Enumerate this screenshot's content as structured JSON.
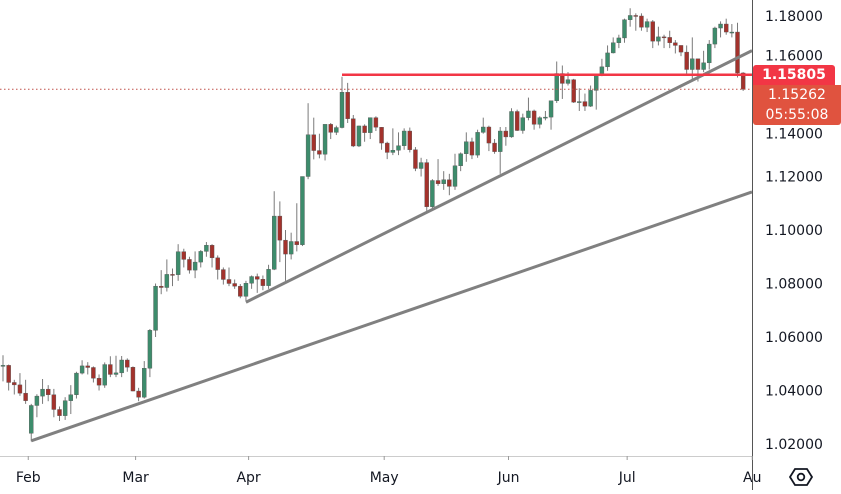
{
  "chart_data": {
    "type": "candlestick",
    "ylim": [
      1.015,
      1.1865
    ],
    "y_ticks": [
      "1.18000",
      "1.16000",
      "1.14000",
      "1.12000",
      "1.10000",
      "1.08000",
      "1.06000",
      "1.04000",
      "1.02000"
    ],
    "y_tick_values": [
      1.18,
      1.16,
      1.14,
      1.12,
      1.1,
      1.08,
      1.06,
      1.04,
      1.02
    ],
    "x_labels": [
      {
        "label": "Feb",
        "date": "2025-02-03"
      },
      {
        "label": "Mar",
        "date": "2025-02-28"
      },
      {
        "label": "Apr",
        "date": "2025-03-28"
      },
      {
        "label": "May",
        "date": "2025-05-01"
      },
      {
        "label": "Jun",
        "date": "2025-06-02"
      },
      {
        "label": "Jul",
        "date": "2025-07-01"
      },
      {
        "label": "Au",
        "date": "2025-08-01"
      }
    ],
    "colors": {
      "up": "#3d8c6c",
      "down": "#a3322c",
      "trendline": "#808080",
      "level": "#f23645",
      "last_price_tag": "#e0533f",
      "last_price_line": "#c0504a"
    },
    "grid": false,
    "candles": [
      [
        "2025-01-27",
        1.0493,
        1.0532,
        1.0434,
        1.0494
      ],
      [
        "2025-01-28",
        1.0494,
        1.0497,
        1.04,
        1.043
      ],
      [
        "2025-01-29",
        1.043,
        1.044,
        1.0385,
        1.0421
      ],
      [
        "2025-01-30",
        1.0421,
        1.0465,
        1.038,
        1.039
      ],
      [
        "2025-01-31",
        1.039,
        1.044,
        1.035,
        1.0362
      ],
      [
        "2025-02-03",
        1.024,
        1.035,
        1.021,
        1.0344
      ],
      [
        "2025-02-04",
        1.0344,
        1.0386,
        1.03,
        1.0379
      ],
      [
        "2025-02-05",
        1.0379,
        1.0443,
        1.035,
        1.0405
      ],
      [
        "2025-02-06",
        1.0405,
        1.042,
        1.036,
        1.0384
      ],
      [
        "2025-02-07",
        1.0384,
        1.0406,
        1.03,
        1.0329
      ],
      [
        "2025-02-10",
        1.0329,
        1.034,
        1.0286,
        1.0306
      ],
      [
        "2025-02-11",
        1.0306,
        1.0375,
        1.029,
        1.0362
      ],
      [
        "2025-02-12",
        1.0362,
        1.042,
        1.0312,
        1.0384
      ],
      [
        "2025-02-13",
        1.0384,
        1.047,
        1.037,
        1.0465
      ],
      [
        "2025-02-14",
        1.0465,
        1.0513,
        1.046,
        1.0492
      ],
      [
        "2025-02-17",
        1.0492,
        1.0506,
        1.046,
        1.0486
      ],
      [
        "2025-02-18",
        1.0486,
        1.049,
        1.043,
        1.0446
      ],
      [
        "2025-02-19",
        1.0446,
        1.046,
        1.04,
        1.042
      ],
      [
        "2025-02-20",
        1.042,
        1.0505,
        1.041,
        1.0497
      ],
      [
        "2025-02-21",
        1.0497,
        1.0528,
        1.045,
        1.046
      ],
      [
        "2025-02-24",
        1.046,
        1.053,
        1.045,
        1.0466
      ],
      [
        "2025-02-25",
        1.0466,
        1.0529,
        1.045,
        1.0514
      ],
      [
        "2025-02-26",
        1.0514,
        1.052,
        1.047,
        1.0487
      ],
      [
        "2025-02-27",
        1.0487,
        1.049,
        1.0397,
        1.0398
      ],
      [
        "2025-02-28",
        1.0398,
        1.041,
        1.036,
        1.0375
      ],
      [
        "2025-03-03",
        1.0375,
        1.051,
        1.037,
        1.0483
      ],
      [
        "2025-03-04",
        1.0483,
        1.063,
        1.045,
        1.0625
      ],
      [
        "2025-03-05",
        1.0625,
        1.08,
        1.06,
        1.079
      ],
      [
        "2025-03-06",
        1.079,
        1.085,
        1.076,
        1.0785
      ],
      [
        "2025-03-07",
        1.0785,
        1.089,
        1.077,
        1.0834
      ],
      [
        "2025-03-10",
        1.0834,
        1.0856,
        1.079,
        1.0833
      ],
      [
        "2025-03-11",
        1.0833,
        1.0947,
        1.081,
        1.0919
      ],
      [
        "2025-03-12",
        1.0919,
        1.093,
        1.086,
        1.089
      ],
      [
        "2025-03-13",
        1.089,
        1.09,
        1.0837,
        1.085
      ],
      [
        "2025-03-14",
        1.085,
        1.092,
        1.082,
        1.088
      ],
      [
        "2025-03-17",
        1.088,
        1.0925,
        1.086,
        1.092
      ],
      [
        "2025-03-18",
        1.092,
        1.0955,
        1.09,
        1.0943
      ],
      [
        "2025-03-19",
        1.0943,
        1.0947,
        1.086,
        1.0896
      ],
      [
        "2025-03-20",
        1.0896,
        1.0905,
        1.0815,
        1.0852
      ],
      [
        "2025-03-21",
        1.0852,
        1.086,
        1.0796,
        1.0815
      ],
      [
        "2025-03-24",
        1.0815,
        1.086,
        1.079,
        1.08
      ],
      [
        "2025-03-25",
        1.08,
        1.0815,
        1.078,
        1.079
      ],
      [
        "2025-03-26",
        1.079,
        1.0798,
        1.0745,
        1.0752
      ],
      [
        "2025-03-27",
        1.0752,
        1.081,
        1.0733,
        1.0801
      ],
      [
        "2025-03-28",
        1.0801,
        1.083,
        1.078,
        1.0826
      ],
      [
        "2025-03-31",
        1.0826,
        1.0837,
        1.0765,
        1.0816
      ],
      [
        "2025-04-01",
        1.0816,
        1.083,
        1.0775,
        1.0792
      ],
      [
        "2025-04-02",
        1.0792,
        1.087,
        1.078,
        1.0853
      ],
      [
        "2025-04-03",
        1.0853,
        1.1145,
        1.085,
        1.1052
      ],
      [
        "2025-04-04",
        1.1052,
        1.1107,
        1.088,
        1.0962
      ],
      [
        "2025-04-07",
        1.0962,
        1.1,
        1.081,
        1.091
      ],
      [
        "2025-04-08",
        1.091,
        1.099,
        1.089,
        1.0957
      ],
      [
        "2025-04-09",
        1.0957,
        1.11,
        1.092,
        1.0945
      ],
      [
        "2025-04-10",
        1.0945,
        1.12,
        1.094,
        1.12
      ],
      [
        "2025-04-11",
        1.12,
        1.1474,
        1.119,
        1.1356
      ],
      [
        "2025-04-14",
        1.1356,
        1.142,
        1.1264,
        1.1297
      ],
      [
        "2025-04-15",
        1.1297,
        1.136,
        1.1268,
        1.1283
      ],
      [
        "2025-04-16",
        1.1283,
        1.139,
        1.126,
        1.1395
      ],
      [
        "2025-04-17",
        1.1395,
        1.14,
        1.134,
        1.1365
      ],
      [
        "2025-04-18",
        1.1365,
        1.139,
        1.1355,
        1.1383
      ],
      [
        "2025-04-21",
        1.1383,
        1.1573,
        1.138,
        1.1515
      ],
      [
        "2025-04-22",
        1.1515,
        1.155,
        1.14,
        1.1416
      ],
      [
        "2025-04-23",
        1.1416,
        1.143,
        1.131,
        1.1314
      ],
      [
        "2025-04-24",
        1.1314,
        1.139,
        1.131,
        1.1389
      ],
      [
        "2025-04-25",
        1.1389,
        1.1395,
        1.133,
        1.1364
      ],
      [
        "2025-04-28",
        1.1364,
        1.142,
        1.134,
        1.142
      ],
      [
        "2025-04-29",
        1.142,
        1.1425,
        1.137,
        1.1384
      ],
      [
        "2025-04-30",
        1.1384,
        1.1385,
        1.13,
        1.1325
      ],
      [
        "2025-05-01",
        1.1325,
        1.133,
        1.1265,
        1.129
      ],
      [
        "2025-05-02",
        1.129,
        1.138,
        1.128,
        1.1298
      ],
      [
        "2025-05-05",
        1.1298,
        1.1365,
        1.128,
        1.1315
      ],
      [
        "2025-05-06",
        1.1315,
        1.138,
        1.13,
        1.137
      ],
      [
        "2025-05-07",
        1.137,
        1.1383,
        1.129,
        1.13
      ],
      [
        "2025-05-08",
        1.13,
        1.131,
        1.122,
        1.123
      ],
      [
        "2025-05-09",
        1.123,
        1.127,
        1.12,
        1.1252
      ],
      [
        "2025-05-12",
        1.1252,
        1.1265,
        1.1065,
        1.1087
      ],
      [
        "2025-05-13",
        1.1087,
        1.119,
        1.108,
        1.1185
      ],
      [
        "2025-05-14",
        1.1185,
        1.1265,
        1.1165,
        1.1173
      ],
      [
        "2025-05-15",
        1.1173,
        1.122,
        1.115,
        1.1188
      ],
      [
        "2025-05-16",
        1.1188,
        1.121,
        1.113,
        1.1163
      ],
      [
        "2025-05-19",
        1.1163,
        1.1285,
        1.115,
        1.124
      ],
      [
        "2025-05-20",
        1.124,
        1.129,
        1.122,
        1.1285
      ],
      [
        "2025-05-21",
        1.1285,
        1.1365,
        1.1255,
        1.133
      ],
      [
        "2025-05-22",
        1.133,
        1.1345,
        1.1265,
        1.128
      ],
      [
        "2025-05-23",
        1.128,
        1.1375,
        1.127,
        1.1365
      ],
      [
        "2025-05-26",
        1.1365,
        1.142,
        1.136,
        1.1385
      ],
      [
        "2025-05-27",
        1.1385,
        1.139,
        1.1295,
        1.1325
      ],
      [
        "2025-05-28",
        1.1325,
        1.134,
        1.1285,
        1.1293
      ],
      [
        "2025-05-29",
        1.1293,
        1.1385,
        1.121,
        1.137
      ],
      [
        "2025-05-30",
        1.137,
        1.1385,
        1.1315,
        1.1348
      ],
      [
        "2025-06-02",
        1.1348,
        1.1455,
        1.1345,
        1.1443
      ],
      [
        "2025-06-03",
        1.1443,
        1.145,
        1.137,
        1.1372
      ],
      [
        "2025-06-04",
        1.1372,
        1.1435,
        1.136,
        1.142
      ],
      [
        "2025-06-05",
        1.142,
        1.1495,
        1.141,
        1.1445
      ],
      [
        "2025-06-06",
        1.1445,
        1.145,
        1.1375,
        1.1395
      ],
      [
        "2025-06-09",
        1.1395,
        1.1425,
        1.138,
        1.142
      ],
      [
        "2025-06-10",
        1.142,
        1.1445,
        1.141,
        1.1422
      ],
      [
        "2025-06-11",
        1.1422,
        1.148,
        1.1375,
        1.1483
      ],
      [
        "2025-06-12",
        1.1483,
        1.163,
        1.1475,
        1.1585
      ],
      [
        "2025-06-13",
        1.1585,
        1.1615,
        1.149,
        1.1548
      ],
      [
        "2025-06-16",
        1.1548,
        1.159,
        1.154,
        1.1562
      ],
      [
        "2025-06-17",
        1.1562,
        1.1565,
        1.1475,
        1.1478
      ],
      [
        "2025-06-18",
        1.1478,
        1.153,
        1.1445,
        1.148
      ],
      [
        "2025-06-19",
        1.148,
        1.151,
        1.1445,
        1.1463
      ],
      [
        "2025-06-20",
        1.1463,
        1.154,
        1.146,
        1.1522
      ],
      [
        "2025-06-23",
        1.1522,
        1.158,
        1.145,
        1.158
      ],
      [
        "2025-06-24",
        1.158,
        1.164,
        1.1575,
        1.161
      ],
      [
        "2025-06-25",
        1.161,
        1.169,
        1.1595,
        1.1662
      ],
      [
        "2025-06-26",
        1.1662,
        1.172,
        1.166,
        1.17
      ],
      [
        "2025-06-27",
        1.17,
        1.173,
        1.168,
        1.1718
      ],
      [
        "2025-06-30",
        1.1718,
        1.179,
        1.17,
        1.1786
      ],
      [
        "2025-07-01",
        1.1786,
        1.1829,
        1.176,
        1.1802
      ],
      [
        "2025-07-02",
        1.1802,
        1.181,
        1.1745,
        1.18
      ],
      [
        "2025-07-03",
        1.18,
        1.181,
        1.1745,
        1.1758
      ],
      [
        "2025-07-04",
        1.1758,
        1.179,
        1.174,
        1.1779
      ],
      [
        "2025-07-07",
        1.1779,
        1.1785,
        1.168,
        1.1706
      ],
      [
        "2025-07-08",
        1.1706,
        1.176,
        1.169,
        1.1722
      ],
      [
        "2025-07-09",
        1.1722,
        1.173,
        1.168,
        1.172
      ],
      [
        "2025-07-10",
        1.172,
        1.1745,
        1.168,
        1.17
      ],
      [
        "2025-07-11",
        1.17,
        1.171,
        1.166,
        1.169
      ],
      [
        "2025-07-14",
        1.169,
        1.169,
        1.165,
        1.1665
      ],
      [
        "2025-07-15",
        1.1665,
        1.169,
        1.158,
        1.16
      ],
      [
        "2025-07-16",
        1.16,
        1.172,
        1.1555,
        1.164
      ],
      [
        "2025-07-17",
        1.164,
        1.164,
        1.1555,
        1.16
      ],
      [
        "2025-07-18",
        1.16,
        1.167,
        1.159,
        1.1625
      ],
      [
        "2025-07-21",
        1.1625,
        1.171,
        1.16,
        1.1695
      ],
      [
        "2025-07-22",
        1.1695,
        1.176,
        1.168,
        1.1755
      ],
      [
        "2025-07-23",
        1.1755,
        1.178,
        1.172,
        1.177
      ],
      [
        "2025-07-24",
        1.177,
        1.179,
        1.173,
        1.174
      ],
      [
        "2025-07-25",
        1.174,
        1.177,
        1.172,
        1.174
      ],
      [
        "2025-07-28",
        1.174,
        1.1775,
        1.157,
        1.1587
      ],
      [
        "2025-07-29",
        1.1587,
        1.159,
        1.152,
        1.1526
      ]
    ],
    "trendlines": [
      {
        "from": [
          "2025-02-03",
          1.0212
        ],
        "to": [
          "2025-07-29",
          1.1131
        ]
      },
      {
        "from": [
          "2025-03-27",
          1.073
        ],
        "to": [
          "2025-07-29",
          1.1654
        ]
      }
    ],
    "horizontal_level": {
      "from": "2025-04-21",
      "price": 1.15805,
      "label": "1.15805"
    },
    "last_price": {
      "price": 1.15262,
      "label": "1.15262",
      "countdown": "05:55:08"
    }
  },
  "ui": {
    "settings_icon": "hexagon-settings-icon"
  }
}
